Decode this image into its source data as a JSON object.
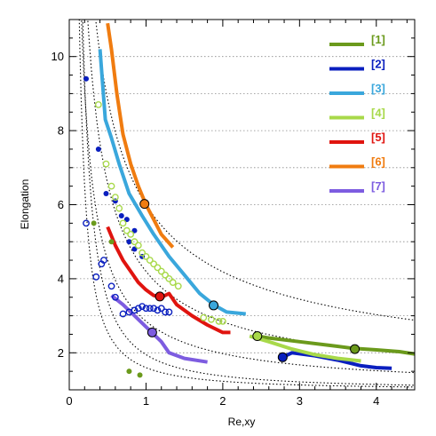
{
  "chart_data": {
    "type": "line",
    "xlabel": "Re,xy",
    "ylabel": "Elongation",
    "xlim": [
      0,
      4.5
    ],
    "ylim": [
      1,
      11
    ],
    "x_ticks": [
      0,
      1,
      2,
      3,
      4
    ],
    "y_ticks": [
      2,
      4,
      6,
      8,
      10
    ],
    "grid": "horizontal dotted",
    "legend_position": "top-right",
    "series": [
      {
        "name": "[1]",
        "color": "#6b9a1c",
        "points": [
          [
            2.45,
            2.45
          ],
          [
            2.6,
            2.4
          ],
          [
            3.0,
            2.3
          ],
          [
            3.4,
            2.2
          ],
          [
            3.7,
            2.12
          ],
          [
            4.0,
            2.08
          ],
          [
            4.3,
            2.03
          ],
          [
            4.5,
            1.97
          ]
        ],
        "marker": [
          3.72,
          2.1
        ]
      },
      {
        "name": "[2]",
        "color": "#0a1fbf",
        "points": [
          [
            2.78,
            1.88
          ],
          [
            2.9,
            2.0
          ],
          [
            3.2,
            1.92
          ],
          [
            3.5,
            1.8
          ],
          [
            3.8,
            1.65
          ],
          [
            4.0,
            1.6
          ],
          [
            4.2,
            1.58
          ]
        ],
        "marker": [
          2.78,
          1.88
        ]
      },
      {
        "name": "[3]",
        "color": "#3aa7dc",
        "points": [
          [
            0.4,
            10.2
          ],
          [
            0.47,
            8.3
          ],
          [
            0.55,
            7.8
          ],
          [
            0.65,
            7.1
          ],
          [
            0.78,
            6.3
          ],
          [
            0.95,
            5.7
          ],
          [
            1.1,
            5.2
          ],
          [
            1.3,
            4.6
          ],
          [
            1.5,
            4.1
          ],
          [
            1.7,
            3.6
          ],
          [
            1.88,
            3.3
          ],
          [
            2.05,
            3.1
          ],
          [
            2.3,
            3.05
          ]
        ],
        "marker": [
          1.88,
          3.28
        ]
      },
      {
        "name": "[4]",
        "color": "#a8d94a",
        "points": [
          [
            2.35,
            2.45
          ],
          [
            2.6,
            2.3
          ],
          [
            2.9,
            2.1
          ],
          [
            3.2,
            1.95
          ],
          [
            3.5,
            1.85
          ],
          [
            3.8,
            1.78
          ]
        ],
        "marker": [
          2.45,
          2.45
        ]
      },
      {
        "name": "[5]",
        "color": "#e0140f",
        "points": [
          [
            0.5,
            5.4
          ],
          [
            0.6,
            4.9
          ],
          [
            0.7,
            4.5
          ],
          [
            0.8,
            4.2
          ],
          [
            0.9,
            3.9
          ],
          [
            1.0,
            3.7
          ],
          [
            1.1,
            3.55
          ],
          [
            1.2,
            3.5
          ],
          [
            1.3,
            3.6
          ],
          [
            1.4,
            3.3
          ],
          [
            1.6,
            3.0
          ],
          [
            1.8,
            2.75
          ],
          [
            2.0,
            2.55
          ],
          [
            2.1,
            2.55
          ]
        ],
        "marker": [
          1.18,
          3.52
        ]
      },
      {
        "name": "[6]",
        "color": "#f07c10",
        "points": [
          [
            0.5,
            10.9
          ],
          [
            0.55,
            10.2
          ],
          [
            0.62,
            9.0
          ],
          [
            0.7,
            7.9
          ],
          [
            0.8,
            7.1
          ],
          [
            0.9,
            6.5
          ],
          [
            1.0,
            6.0
          ],
          [
            1.1,
            5.6
          ],
          [
            1.2,
            5.2
          ],
          [
            1.35,
            4.85
          ]
        ],
        "marker": [
          0.98,
          6.02
        ]
      },
      {
        "name": "[7]",
        "color": "#7d5ce0",
        "points": [
          [
            0.55,
            3.55
          ],
          [
            0.7,
            3.3
          ],
          [
            0.85,
            3.0
          ],
          [
            1.0,
            2.7
          ],
          [
            1.1,
            2.5
          ],
          [
            1.2,
            2.3
          ],
          [
            1.3,
            2.0
          ],
          [
            1.5,
            1.85
          ],
          [
            1.8,
            1.75
          ]
        ],
        "marker": [
          1.08,
          2.55
        ]
      }
    ],
    "scatter": [
      {
        "color": "#0a1fbf",
        "filled": true,
        "points": [
          [
            0.22,
            9.4
          ],
          [
            0.38,
            7.5
          ],
          [
            0.48,
            6.3
          ],
          [
            0.6,
            6.1
          ],
          [
            0.68,
            5.7
          ],
          [
            0.75,
            5.6
          ],
          [
            0.85,
            5.3
          ],
          [
            0.78,
            5.0
          ],
          [
            0.95,
            4.6
          ],
          [
            0.85,
            4.8
          ]
        ]
      },
      {
        "color": "#0a1fbf",
        "filled": false,
        "points": [
          [
            0.22,
            5.5
          ],
          [
            0.35,
            4.05
          ],
          [
            0.45,
            4.5
          ],
          [
            0.42,
            4.4
          ],
          [
            0.55,
            3.8
          ],
          [
            0.6,
            3.5
          ],
          [
            0.7,
            3.05
          ],
          [
            0.78,
            3.1
          ],
          [
            0.85,
            3.15
          ],
          [
            0.9,
            3.2
          ],
          [
            0.95,
            3.25
          ],
          [
            1.0,
            3.2
          ],
          [
            1.05,
            3.2
          ],
          [
            1.1,
            3.2
          ],
          [
            1.15,
            3.15
          ],
          [
            1.2,
            3.2
          ],
          [
            1.25,
            3.1
          ],
          [
            1.3,
            3.1
          ]
        ]
      },
      {
        "color": "#6b9a1c",
        "filled": true,
        "points": [
          [
            0.32,
            5.5
          ],
          [
            0.55,
            5.0
          ],
          [
            0.78,
            1.5
          ],
          [
            0.92,
            1.4
          ]
        ]
      },
      {
        "color": "#a8d94a",
        "filled": false,
        "points": [
          [
            0.38,
            8.7
          ],
          [
            0.48,
            7.1
          ],
          [
            0.55,
            6.5
          ],
          [
            0.6,
            6.2
          ],
          [
            0.65,
            5.9
          ],
          [
            0.7,
            5.5
          ],
          [
            0.75,
            5.3
          ],
          [
            0.8,
            5.2
          ],
          [
            0.85,
            5.0
          ],
          [
            0.9,
            4.9
          ],
          [
            0.95,
            4.7
          ],
          [
            1.0,
            4.6
          ],
          [
            1.05,
            4.5
          ],
          [
            1.1,
            4.4
          ],
          [
            1.15,
            4.3
          ],
          [
            1.2,
            4.2
          ],
          [
            1.25,
            4.1
          ],
          [
            1.3,
            4.0
          ],
          [
            1.35,
            3.9
          ],
          [
            1.42,
            3.8
          ],
          [
            1.75,
            2.95
          ],
          [
            1.85,
            2.9
          ],
          [
            1.95,
            2.85
          ],
          [
            2.0,
            2.85
          ]
        ]
      }
    ],
    "guide_curves": {
      "style": "dotted black",
      "functions": [
        {
          "a": 0.6,
          "b": 1.38
        },
        {
          "a": 0.95,
          "b": 1.35
        },
        {
          "a": 1.85,
          "b": 0.92
        },
        {
          "a": 3.2,
          "b": 0.8
        },
        {
          "a": 5.0,
          "b": 0.65
        }
      ]
    }
  }
}
